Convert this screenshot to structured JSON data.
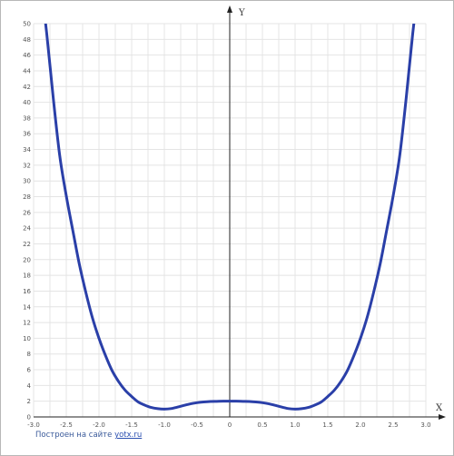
{
  "chart_data": {
    "type": "line",
    "title": "",
    "xlabel": "X",
    "ylabel": "Y",
    "xlim": [
      -3.0,
      3.0
    ],
    "ylim": [
      0,
      50
    ],
    "grid": true,
    "x_ticks": [
      "-3.0",
      "-2.5",
      "-2.0",
      "-1.5",
      "-1.0",
      "-0.5",
      "0",
      "0.5",
      "1.0",
      "1.5",
      "2.0",
      "2.5",
      "3.0"
    ],
    "y_ticks": [
      "0",
      "2",
      "4",
      "6",
      "8",
      "10",
      "12",
      "14",
      "16",
      "18",
      "20",
      "22",
      "24",
      "26",
      "28",
      "30",
      "32",
      "34",
      "36",
      "38",
      "40",
      "42",
      "44",
      "46",
      "48",
      "50"
    ],
    "series": [
      {
        "color": "#2a3fa8",
        "x": [
          -2.9,
          -2.8,
          -2.7,
          -2.6,
          -2.5,
          -2.4,
          -2.3,
          -2.2,
          -2.1,
          -2.0,
          -1.9,
          -1.8,
          -1.7,
          -1.6,
          -1.5,
          -1.4,
          -1.3,
          -1.2,
          -1.1,
          -1.0,
          -0.9,
          -0.8,
          -0.7,
          -0.6,
          -0.5,
          -0.4,
          -0.3,
          -0.2,
          -0.1,
          0.0,
          0.1,
          0.2,
          0.3,
          0.4,
          0.5,
          0.6,
          0.7,
          0.8,
          0.9,
          1.0,
          1.1,
          1.2,
          1.3,
          1.4,
          1.5,
          1.6,
          1.7,
          1.8,
          1.9,
          2.0,
          2.1,
          2.2,
          2.3,
          2.4,
          2.5,
          2.6,
          2.7,
          2.8,
          2.9
        ],
        "y": [
          55.9,
          48.8,
          40.6,
          33.2,
          28.1,
          23.7,
          19.4,
          15.8,
          12.6,
          10.0,
          7.8,
          5.9,
          4.5,
          3.4,
          2.6,
          1.9,
          1.5,
          1.2,
          1.05,
          1.0,
          1.06,
          1.25,
          1.46,
          1.67,
          1.81,
          1.9,
          1.96,
          1.98,
          2.0,
          2.0,
          2.0,
          1.98,
          1.96,
          1.9,
          1.81,
          1.67,
          1.46,
          1.25,
          1.06,
          1.0,
          1.05,
          1.2,
          1.5,
          1.9,
          2.6,
          3.4,
          4.5,
          5.9,
          7.8,
          10.0,
          12.6,
          15.8,
          19.4,
          23.7,
          28.1,
          33.2,
          40.6,
          48.8,
          55.9
        ]
      }
    ]
  },
  "footer": {
    "prefix": "Построен на сайте",
    "link": "yotx.ru"
  }
}
